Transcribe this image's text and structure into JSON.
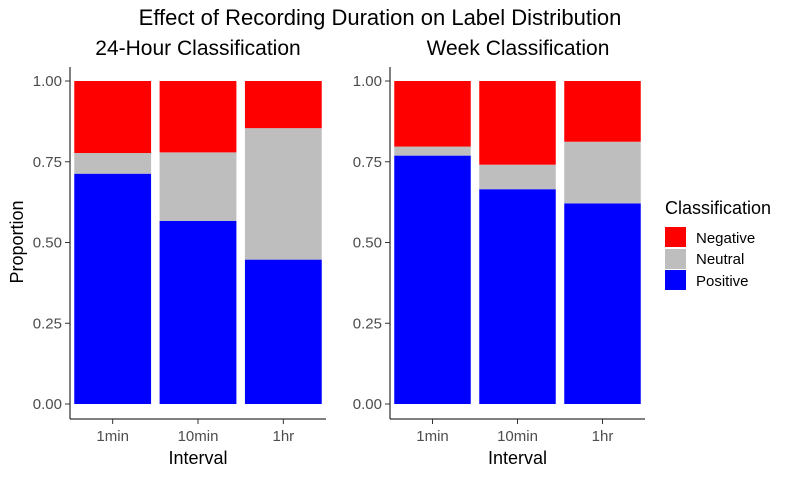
{
  "title": "Effect of Recording Duration on Label Distribution",
  "ylabel": "Proportion",
  "legend": {
    "title": "Classification",
    "items": [
      {
        "label": "Negative",
        "color": "#ff0000"
      },
      {
        "label": "Neutral",
        "color": "#bebebe"
      },
      {
        "label": "Positive",
        "color": "#0000ff"
      }
    ]
  },
  "chart_data": [
    {
      "type": "bar",
      "stacked": true,
      "title": "24-Hour Classification",
      "xlabel": "Interval",
      "ylabel": "Proportion",
      "ylim": [
        0,
        1
      ],
      "yticks": [
        "0.00",
        "0.25",
        "0.50",
        "0.75",
        "1.00"
      ],
      "categories": [
        "1min",
        "10min",
        "1hr"
      ],
      "series": [
        {
          "name": "Positive",
          "color": "#0000ff",
          "values": [
            0.713,
            0.567,
            0.447
          ]
        },
        {
          "name": "Neutral",
          "color": "#bebebe",
          "values": [
            0.064,
            0.212,
            0.407
          ]
        },
        {
          "name": "Negative",
          "color": "#ff0000",
          "values": [
            0.223,
            0.221,
            0.146
          ]
        }
      ],
      "grid": false
    },
    {
      "type": "bar",
      "stacked": true,
      "title": "Week Classification",
      "xlabel": "Interval",
      "ylabel": "",
      "ylim": [
        0,
        1
      ],
      "yticks": [
        "0.00",
        "0.25",
        "0.50",
        "0.75",
        "1.00"
      ],
      "categories": [
        "1min",
        "10min",
        "1hr"
      ],
      "series": [
        {
          "name": "Positive",
          "color": "#0000ff",
          "values": [
            0.769,
            0.665,
            0.621
          ]
        },
        {
          "name": "Neutral",
          "color": "#bebebe",
          "values": [
            0.028,
            0.076,
            0.191
          ]
        },
        {
          "name": "Negative",
          "color": "#ff0000",
          "values": [
            0.203,
            0.259,
            0.188
          ]
        }
      ],
      "grid": false
    }
  ]
}
